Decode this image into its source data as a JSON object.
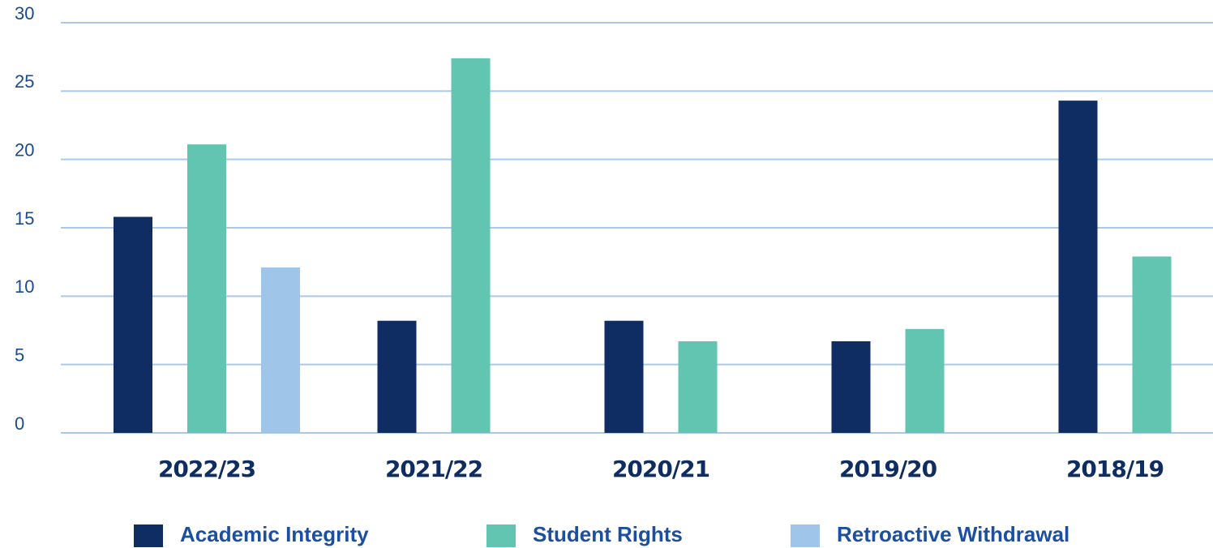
{
  "chart_data": {
    "type": "bar",
    "categories": [
      "2022/23",
      "2021/22",
      "2020/21",
      "2019/20",
      "2018/19"
    ],
    "series": [
      {
        "name": "Academic Integrity",
        "color": "#0f2d63",
        "values": [
          15.8,
          8.2,
          8.2,
          6.7,
          24.3
        ]
      },
      {
        "name": "Student Rights",
        "color": "#62c5b2",
        "values": [
          21.1,
          27.4,
          6.7,
          7.6,
          12.9
        ]
      },
      {
        "name": "Retroactive Withdrawal",
        "color": "#9fc5e8",
        "values": [
          12.1,
          null,
          null,
          null,
          null
        ]
      }
    ],
    "ylim": [
      0,
      30
    ],
    "yticks": [
      0,
      5,
      10,
      15,
      20,
      25,
      30
    ],
    "grid": true,
    "legend": "bottom"
  }
}
